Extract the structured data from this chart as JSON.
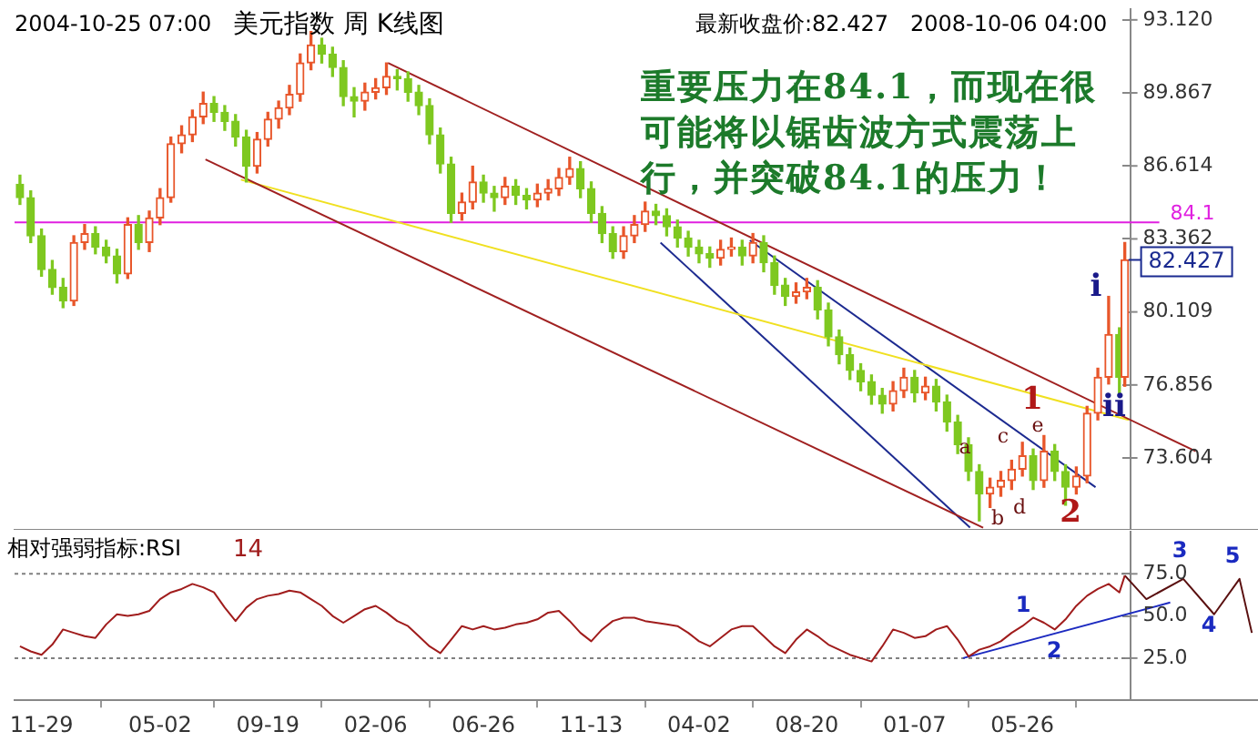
{
  "chart_data": [
    {
      "type": "candlestick",
      "title": "美元指数 周 K线图",
      "tick_labels": "y",
      "x": [
        "2004-11-01",
        "2004-11-15",
        "2004-11-29",
        "2004-12-13",
        "2004-12-27",
        "2005-01-10",
        "2005-01-24",
        "2005-02-07",
        "2005-02-21",
        "2005-03-07",
        "2005-03-21",
        "2005-04-04",
        "2005-04-18",
        "2005-05-02",
        "2005-05-16",
        "2005-05-30",
        "2005-06-13",
        "2005-06-27",
        "2005-07-11",
        "2005-07-25",
        "2005-08-08",
        "2005-08-22",
        "2005-09-05",
        "2005-09-19",
        "2005-10-03",
        "2005-10-17",
        "2005-10-31",
        "2005-11-14",
        "2005-11-28",
        "2005-12-12",
        "2005-12-26",
        "2006-01-09",
        "2006-01-23",
        "2006-02-06",
        "2006-02-20",
        "2006-03-06",
        "2006-03-20",
        "2006-04-03",
        "2006-04-17",
        "2006-05-01",
        "2006-05-15",
        "2006-05-29",
        "2006-06-12",
        "2006-06-26",
        "2006-07-10",
        "2006-07-24",
        "2006-08-07",
        "2006-08-21",
        "2006-09-04",
        "2006-09-18",
        "2006-10-02",
        "2006-10-16",
        "2006-10-30",
        "2006-11-13",
        "2006-11-27",
        "2006-12-11",
        "2006-12-25",
        "2007-01-08",
        "2007-01-22",
        "2007-02-05",
        "2007-02-19",
        "2007-03-05",
        "2007-03-19",
        "2007-04-02",
        "2007-04-16",
        "2007-04-30",
        "2007-05-14",
        "2007-05-28",
        "2007-06-11",
        "2007-06-25",
        "2007-07-09",
        "2007-07-23",
        "2007-08-06",
        "2007-08-20",
        "2007-09-03",
        "2007-09-17",
        "2007-10-01",
        "2007-10-15",
        "2007-10-29",
        "2007-11-12",
        "2007-11-26",
        "2007-12-10",
        "2007-12-24",
        "2008-01-07",
        "2008-01-21",
        "2008-02-04",
        "2008-02-18",
        "2008-03-03",
        "2008-03-17",
        "2008-03-31",
        "2008-04-14",
        "2008-04-28",
        "2008-05-12",
        "2008-05-26",
        "2008-06-09",
        "2008-06-23",
        "2008-07-07",
        "2008-07-21",
        "2008-08-04",
        "2008-08-18",
        "2008-09-01",
        "2008-09-15",
        "2008-09-29",
        "2008-10-06"
      ],
      "ohlc": [
        [
          85.8,
          86.2,
          84.9,
          85.2
        ],
        [
          85.2,
          85.5,
          83.2,
          83.5
        ],
        [
          83.5,
          83.8,
          81.7,
          82.0
        ],
        [
          82.0,
          82.4,
          80.9,
          81.2
        ],
        [
          81.2,
          81.6,
          80.3,
          80.6
        ],
        [
          80.6,
          83.5,
          80.4,
          83.2
        ],
        [
          83.2,
          84.0,
          82.9,
          83.6
        ],
        [
          83.6,
          83.9,
          82.7,
          83.0
        ],
        [
          83.0,
          83.3,
          82.3,
          82.6
        ],
        [
          82.6,
          82.9,
          81.4,
          81.8
        ],
        [
          81.8,
          84.3,
          81.6,
          84.0
        ],
        [
          84.0,
          84.4,
          82.9,
          83.2
        ],
        [
          83.2,
          84.6,
          82.8,
          84.3
        ],
        [
          84.3,
          85.6,
          84.0,
          85.2
        ],
        [
          85.2,
          87.9,
          85.0,
          87.6
        ],
        [
          87.6,
          88.4,
          87.2,
          88.0
        ],
        [
          88.0,
          89.1,
          87.7,
          88.8
        ],
        [
          88.8,
          89.9,
          88.5,
          89.4
        ],
        [
          89.4,
          89.7,
          88.6,
          89.0
        ],
        [
          89.0,
          89.3,
          88.2,
          88.6
        ],
        [
          88.6,
          88.9,
          87.5,
          87.9
        ],
        [
          87.9,
          88.2,
          85.9,
          86.6
        ],
        [
          86.6,
          88.1,
          86.3,
          87.8
        ],
        [
          87.8,
          89.0,
          87.5,
          88.7
        ],
        [
          88.7,
          89.5,
          88.3,
          89.2
        ],
        [
          89.2,
          90.2,
          88.9,
          89.8
        ],
        [
          89.8,
          91.6,
          89.5,
          91.2
        ],
        [
          91.2,
          92.6,
          90.9,
          92.0
        ],
        [
          92.0,
          92.3,
          91.2,
          91.6
        ],
        [
          91.6,
          91.9,
          90.6,
          91.0
        ],
        [
          91.0,
          91.3,
          89.3,
          89.7
        ],
        [
          89.7,
          90.1,
          88.8,
          89.5
        ],
        [
          89.5,
          90.3,
          89.1,
          89.9
        ],
        [
          89.9,
          90.5,
          89.6,
          90.1
        ],
        [
          90.1,
          91.2,
          89.8,
          90.6
        ],
        [
          90.6,
          90.9,
          90.0,
          90.5
        ],
        [
          90.5,
          90.8,
          89.5,
          89.9
        ],
        [
          89.9,
          90.2,
          88.9,
          89.3
        ],
        [
          89.3,
          89.6,
          87.6,
          88.0
        ],
        [
          88.0,
          88.3,
          86.3,
          86.7
        ],
        [
          86.7,
          87.0,
          84.1,
          84.5
        ],
        [
          84.5,
          85.4,
          84.2,
          85.0
        ],
        [
          85.0,
          86.6,
          84.7,
          85.9
        ],
        [
          85.9,
          86.2,
          85.0,
          85.4
        ],
        [
          85.4,
          85.7,
          84.6,
          85.2
        ],
        [
          85.2,
          86.1,
          84.9,
          85.7
        ],
        [
          85.7,
          86.0,
          84.9,
          85.3
        ],
        [
          85.3,
          85.6,
          84.7,
          85.1
        ],
        [
          85.1,
          85.8,
          84.8,
          85.4
        ],
        [
          85.4,
          86.0,
          85.1,
          85.6
        ],
        [
          85.6,
          86.5,
          85.3,
          86.1
        ],
        [
          86.1,
          87.0,
          85.8,
          86.5
        ],
        [
          86.5,
          86.8,
          85.2,
          85.6
        ],
        [
          85.6,
          85.9,
          84.1,
          84.5
        ],
        [
          84.5,
          84.8,
          83.2,
          83.6
        ],
        [
          83.6,
          83.9,
          82.5,
          82.8
        ],
        [
          82.8,
          83.9,
          82.5,
          83.5
        ],
        [
          83.5,
          84.4,
          83.2,
          84.0
        ],
        [
          84.0,
          85.0,
          83.7,
          84.6
        ],
        [
          84.6,
          84.9,
          84.0,
          84.4
        ],
        [
          84.4,
          84.7,
          83.5,
          83.9
        ],
        [
          83.9,
          84.2,
          83.0,
          83.4
        ],
        [
          83.4,
          83.7,
          82.6,
          83.0
        ],
        [
          83.0,
          83.3,
          82.3,
          82.7
        ],
        [
          82.7,
          83.0,
          82.1,
          82.5
        ],
        [
          82.5,
          83.3,
          82.2,
          82.9
        ],
        [
          82.9,
          83.4,
          82.6,
          83.0
        ],
        [
          83.0,
          83.3,
          82.2,
          82.6
        ],
        [
          82.6,
          83.6,
          82.3,
          83.2
        ],
        [
          83.2,
          83.5,
          81.9,
          82.3
        ],
        [
          82.3,
          82.6,
          80.9,
          81.3
        ],
        [
          81.3,
          81.6,
          80.4,
          80.8
        ],
        [
          80.8,
          81.4,
          80.5,
          81.0
        ],
        [
          81.0,
          81.6,
          80.7,
          81.2
        ],
        [
          81.2,
          81.5,
          79.8,
          80.2
        ],
        [
          80.2,
          80.5,
          78.6,
          79.0
        ],
        [
          79.0,
          79.3,
          77.8,
          78.2
        ],
        [
          78.2,
          78.5,
          77.1,
          77.5
        ],
        [
          77.5,
          77.8,
          76.6,
          77.0
        ],
        [
          77.0,
          77.3,
          76.0,
          76.4
        ],
        [
          76.4,
          76.7,
          75.6,
          76.0
        ],
        [
          76.0,
          77.0,
          75.7,
          76.6
        ],
        [
          76.6,
          77.6,
          76.3,
          77.2
        ],
        [
          77.2,
          77.5,
          76.1,
          76.5
        ],
        [
          76.5,
          77.2,
          76.2,
          76.8
        ],
        [
          76.8,
          77.1,
          75.7,
          76.1
        ],
        [
          76.1,
          76.4,
          74.8,
          75.2
        ],
        [
          75.2,
          75.5,
          73.8,
          74.2
        ],
        [
          74.2,
          74.5,
          72.6,
          73.0
        ],
        [
          73.0,
          73.3,
          70.8,
          72.0
        ],
        [
          72.0,
          72.7,
          71.4,
          72.3
        ],
        [
          72.3,
          73.0,
          71.9,
          72.6
        ],
        [
          72.6,
          73.5,
          72.2,
          73.1
        ],
        [
          73.1,
          74.3,
          72.8,
          73.7
        ],
        [
          73.7,
          74.0,
          72.2,
          72.6
        ],
        [
          72.6,
          74.6,
          72.3,
          73.9
        ],
        [
          73.9,
          74.2,
          72.6,
          73.0
        ],
        [
          73.0,
          73.3,
          71.5,
          72.3
        ],
        [
          72.3,
          73.2,
          72.0,
          72.8
        ],
        [
          72.8,
          75.9,
          72.5,
          75.6
        ],
        [
          75.6,
          77.6,
          75.3,
          77.2
        ],
        [
          77.2,
          80.8,
          76.9,
          79.1
        ],
        [
          79.1,
          79.4,
          76.5,
          77.2
        ],
        [
          77.2,
          83.2,
          76.8,
          82.427
        ]
      ],
      "colors": [
        "#7ec820",
        "#7ec820",
        "#7ec820",
        "#7ec820",
        "#7ec820",
        "#e8562a",
        "#e8562a",
        "#7ec820",
        "#7ec820",
        "#7ec820",
        "#e8562a",
        "#7ec820",
        "#e8562a",
        "#e8562a",
        "#e8562a",
        "#e8562a",
        "#e8562a",
        "#e8562a",
        "#7ec820",
        "#7ec820",
        "#7ec820",
        "#7ec820",
        "#e8562a",
        "#e8562a",
        "#e8562a",
        "#e8562a",
        "#e8562a",
        "#e8562a",
        "#7ec820",
        "#7ec820",
        "#7ec820",
        "#7ec820",
        "#e8562a",
        "#e8562a",
        "#e8562a",
        "#7ec820",
        "#7ec820",
        "#7ec820",
        "#7ec820",
        "#7ec820",
        "#7ec820",
        "#e8562a",
        "#e8562a",
        "#7ec820",
        "#7ec820",
        "#e8562a",
        "#7ec820",
        "#7ec820",
        "#e8562a",
        "#e8562a",
        "#e8562a",
        "#e8562a",
        "#7ec820",
        "#7ec820",
        "#7ec820",
        "#7ec820",
        "#e8562a",
        "#e8562a",
        "#e8562a",
        "#7ec820",
        "#7ec820",
        "#7ec820",
        "#7ec820",
        "#7ec820",
        "#7ec820",
        "#e8562a",
        "#e8562a",
        "#7ec820",
        "#e8562a",
        "#7ec820",
        "#7ec820",
        "#7ec820",
        "#e8562a",
        "#e8562a",
        "#7ec820",
        "#7ec820",
        "#7ec820",
        "#7ec820",
        "#7ec820",
        "#7ec820",
        "#7ec820",
        "#e8562a",
        "#e8562a",
        "#7ec820",
        "#e8562a",
        "#7ec820",
        "#7ec820",
        "#7ec820",
        "#7ec820",
        "#7ec820",
        "#e8562a",
        "#e8562a",
        "#e8562a",
        "#e8562a",
        "#7ec820",
        "#e8562a",
        "#7ec820",
        "#7ec820",
        "#e8562a",
        "#e8562a",
        "#e8562a",
        "#e8562a",
        "#7ec820",
        "#e8562a"
      ],
      "series": [
        {
          "type": "line",
          "color": "#a02020",
          "x": [
            "2006-02-22",
            "2009-01-06"
          ],
          "values": [
            91.2,
            73.9
          ]
        },
        {
          "type": "line",
          "color": "#a02020",
          "x": [
            "2005-06-30",
            "2008-04-05"
          ],
          "values": [
            86.9,
            70.5
          ]
        },
        {
          "type": "line",
          "color": "#f0e020",
          "x": [
            "2005-08-15",
            "2008-10-11"
          ],
          "values": [
            86.0,
            75.3
          ]
        },
        {
          "type": "line",
          "color": "#1c2a90",
          "x": [
            "2007-02-11",
            "2008-03-19"
          ],
          "values": [
            83.2,
            70.5
          ]
        },
        {
          "type": "line",
          "color": "#1c2a90",
          "x": [
            "2007-06-07",
            "2008-08-29"
          ],
          "values": [
            83.3,
            72.3
          ]
        }
      ],
      "xlim": [
        "2004-10-25",
        "2009-03-28"
      ],
      "ylim": [
        70.4,
        93.6
      ],
      "yticks": [
        73.604,
        76.856,
        80.109,
        83.362,
        86.614,
        89.867,
        {
          "value": 93.12,
          "label": "93.120"
        }
      ],
      "ref_lines": [
        {
          "axis": "y",
          "value": 84.1,
          "label": "84.1",
          "color": "#e020e0"
        }
      ],
      "annotations": [
        "2004-10-25 07:00",
        "最新收盘价:82.427",
        "2008-10-06 04:00",
        "重要压力在84.1，而现在很可能将以锯齿波方式震荡上行，并突破84.1的压力！",
        {
          "text": "82.427",
          "x": "2008-10-06",
          "y": 82.427
        },
        "a",
        "b",
        "c",
        "d",
        "e",
        "1",
        "2",
        "i",
        "ii"
      ]
    },
    {
      "type": "line",
      "title": "相对强弱指标:RSI",
      "x": [
        "2004-11-01",
        "2004-11-15",
        "2004-11-29",
        "2004-12-13",
        "2004-12-27",
        "2005-01-10",
        "2005-01-24",
        "2005-02-07",
        "2005-02-21",
        "2005-03-07",
        "2005-03-21",
        "2005-04-04",
        "2005-04-18",
        "2005-05-02",
        "2005-05-16",
        "2005-05-30",
        "2005-06-13",
        "2005-06-27",
        "2005-07-11",
        "2005-07-25",
        "2005-08-08",
        "2005-08-22",
        "2005-09-05",
        "2005-09-19",
        "2005-10-03",
        "2005-10-17",
        "2005-10-31",
        "2005-11-14",
        "2005-11-28",
        "2005-12-12",
        "2005-12-26",
        "2006-01-09",
        "2006-01-23",
        "2006-02-06",
        "2006-02-20",
        "2006-03-06",
        "2006-03-20",
        "2006-04-03",
        "2006-04-17",
        "2006-05-01",
        "2006-05-15",
        "2006-05-29",
        "2006-06-12",
        "2006-06-26",
        "2006-07-10",
        "2006-07-24",
        "2006-08-07",
        "2006-08-21",
        "2006-09-04",
        "2006-09-18",
        "2006-10-02",
        "2006-10-16",
        "2006-10-30",
        "2006-11-13",
        "2006-11-27",
        "2006-12-11",
        "2006-12-25",
        "2007-01-08",
        "2007-01-22",
        "2007-02-05",
        "2007-02-19",
        "2007-03-05",
        "2007-03-19",
        "2007-04-02",
        "2007-04-16",
        "2007-04-30",
        "2007-05-14",
        "2007-05-28",
        "2007-06-11",
        "2007-06-25",
        "2007-07-09",
        "2007-07-23",
        "2007-08-06",
        "2007-08-20",
        "2007-09-03",
        "2007-09-17",
        "2007-10-01",
        "2007-10-15",
        "2007-10-29",
        "2007-11-12",
        "2007-11-26",
        "2007-12-10",
        "2007-12-24",
        "2008-01-07",
        "2008-01-21",
        "2008-02-04",
        "2008-02-18",
        "2008-03-03",
        "2008-03-17",
        "2008-03-31",
        "2008-04-14",
        "2008-04-28",
        "2008-05-12",
        "2008-05-26",
        "2008-06-09",
        "2008-06-23",
        "2008-07-07",
        "2008-07-21",
        "2008-08-04",
        "2008-08-18",
        "2008-09-01",
        "2008-09-15",
        "2008-09-29",
        "2008-10-06"
      ],
      "series": [
        {
          "color": "#a01c1c",
          "values": [
            32,
            29,
            27,
            33,
            42,
            40,
            38,
            37,
            45,
            51,
            50,
            51,
            53,
            60,
            64,
            66,
            69,
            67,
            64,
            55,
            47,
            55,
            60,
            62,
            63,
            65,
            64,
            60,
            56,
            50,
            46,
            50,
            54,
            56,
            52,
            47,
            44,
            38,
            32,
            28,
            36,
            44,
            42,
            44,
            42,
            43,
            45,
            46,
            48,
            52,
            53,
            47,
            40,
            35,
            42,
            47,
            49,
            49,
            47,
            46,
            45,
            44,
            40,
            35,
            32,
            37,
            42,
            44,
            44,
            38,
            32,
            28,
            36,
            42,
            38,
            33,
            30,
            27,
            25,
            23,
            32,
            42,
            40,
            37,
            38,
            42,
            44,
            36,
            26,
            30,
            32,
            35,
            40,
            44,
            49,
            46,
            42,
            48,
            56,
            62,
            66,
            69,
            64,
            74
          ]
        },
        {
          "color": "#5a1010",
          "x": [
            "2008-10-06",
            "2008-11-03",
            "2008-12-21",
            "2009-01-30",
            "2009-03-04",
            "2009-03-20"
          ],
          "values": [
            74,
            60,
            72,
            51,
            72,
            40
          ]
        },
        {
          "color": "#1c2ac0",
          "x": [
            "2008-03-10",
            "2008-12-04"
          ],
          "values": [
            25,
            58
          ]
        }
      ],
      "xlim": [
        "2004-10-25",
        "2009-03-28"
      ],
      "ylim": [
        0,
        100
      ],
      "xticks": [
        {
          "value": "2004-11-29",
          "label": "11-29"
        },
        {
          "value": "2005-05-02",
          "label": "05-02"
        },
        {
          "value": "2005-09-19",
          "label": "09-19"
        },
        {
          "value": "2006-02-06",
          "label": "02-06"
        },
        {
          "value": "2006-06-26",
          "label": "06-26"
        },
        {
          "value": "2006-11-13",
          "label": "11-13"
        },
        {
          "value": "2007-04-02",
          "label": "04-02"
        },
        {
          "value": "2007-08-20",
          "label": "08-20"
        },
        {
          "value": "2008-01-07",
          "label": "01-07"
        },
        {
          "value": "2008-05-26",
          "label": "05-26"
        }
      ],
      "yticks": [
        {
          "value": 25,
          "label": "25.0"
        },
        {
          "value": 50,
          "label": "50.0"
        },
        {
          "value": 75,
          "label": "75.0"
        }
      ],
      "ref_lines": [
        {
          "axis": "y",
          "value": 75,
          "color": "#808080",
          "line_style": "dotted"
        },
        {
          "axis": "y",
          "value": 25,
          "color": "#808080",
          "line_style": "dotted"
        }
      ],
      "annotations": [
        "14",
        "1",
        "2",
        "3",
        "4",
        "5"
      ]
    }
  ]
}
